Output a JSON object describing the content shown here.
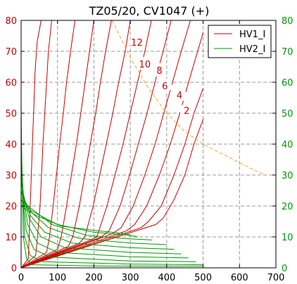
{
  "chart_data": {
    "type": "line",
    "title": "TZ05/20, CV1047 (+)",
    "xlabel": "",
    "ylabel": "",
    "xlim": [
      0,
      700
    ],
    "ylim": [
      0,
      80
    ],
    "xticks": [
      0,
      100,
      200,
      300,
      400,
      500,
      600,
      700
    ],
    "yticks": [
      0,
      10,
      20,
      30,
      40,
      50,
      60,
      70,
      80
    ],
    "grid": true,
    "legend_position": "top-right",
    "colors": {
      "HV1_I": "#cc0000",
      "HV2_I": "#009900",
      "limit": "#f0a830",
      "right_axis": "#009900",
      "curve_labels": "#cc0000"
    },
    "series": [
      {
        "name": "HV1_I",
        "color": "#cc0000",
        "curves": [
          [
            [
              0,
              0
            ],
            [
              20,
              3
            ],
            [
              22,
              10
            ],
            [
              25,
              20
            ],
            [
              28,
              30
            ],
            [
              31,
              40
            ],
            [
              35,
              52
            ],
            [
              38,
              63
            ],
            [
              44,
              73
            ],
            [
              55,
              80
            ]
          ],
          [
            [
              0,
              0
            ],
            [
              40,
              4
            ],
            [
              45,
              10
            ],
            [
              52,
              20
            ],
            [
              56,
              30
            ],
            [
              60,
              40
            ],
            [
              65,
              50
            ],
            [
              70,
              60
            ],
            [
              75,
              70
            ],
            [
              84,
              80
            ]
          ],
          [
            [
              0,
              0
            ],
            [
              70,
              5
            ],
            [
              78,
              10
            ],
            [
              88,
              20
            ],
            [
              97,
              30
            ],
            [
              106,
              40
            ],
            [
              116,
              50
            ],
            [
              125,
              60
            ],
            [
              136,
              70
            ],
            [
              148,
              80
            ]
          ],
          [
            [
              0,
              0
            ],
            [
              100,
              6
            ],
            [
              110,
              10
            ],
            [
              125,
              20
            ],
            [
              138,
              30
            ],
            [
              152,
              40
            ],
            [
              164,
              50
            ],
            [
              176,
              60
            ],
            [
              188,
              70
            ],
            [
              200,
              80
            ]
          ],
          [
            [
              0,
              0
            ],
            [
              130,
              7
            ],
            [
              142,
              10
            ],
            [
              160,
              20
            ],
            [
              175,
              30
            ],
            [
              190,
              40
            ],
            [
              205,
              50
            ],
            [
              218,
              60
            ],
            [
              232,
              70
            ],
            [
              248,
              80
            ]
          ],
          [
            [
              0,
              0
            ],
            [
              160,
              8
            ],
            [
              175,
              10
            ],
            [
              198,
              20
            ],
            [
              216,
              30
            ],
            [
              234,
              40
            ],
            [
              252,
              50
            ],
            [
              268,
              60
            ],
            [
              286,
              70
            ],
            [
              300,
              80
            ]
          ],
          [
            [
              0,
              0
            ],
            [
              190,
              9
            ],
            [
              208,
              10
            ],
            [
              236,
              20
            ],
            [
              258,
              30
            ],
            [
              280,
              40
            ],
            [
              300,
              50
            ],
            [
              320,
              60
            ],
            [
              340,
              70
            ],
            [
              358,
              80
            ]
          ],
          [
            [
              0,
              0
            ],
            [
              220,
              10
            ],
            [
              242,
              12
            ],
            [
              272,
              20
            ],
            [
              298,
              30
            ],
            [
              322,
              40
            ],
            [
              346,
              50
            ],
            [
              368,
              60
            ],
            [
              390,
              70
            ],
            [
              412,
              80
            ]
          ],
          [
            [
              0,
              0
            ],
            [
              250,
              11
            ],
            [
              275,
              13
            ],
            [
              308,
              20
            ],
            [
              340,
              30
            ],
            [
              368,
              40
            ],
            [
              392,
              50
            ],
            [
              416,
              60
            ],
            [
              440,
              70
            ],
            [
              465,
              80
            ]
          ],
          [
            [
              0,
              0
            ],
            [
              290,
              12
            ],
            [
              312,
              14
            ],
            [
              345,
              20
            ],
            [
              380,
              30
            ],
            [
              410,
              40
            ],
            [
              436,
              50
            ],
            [
              460,
              60
            ],
            [
              485,
              70
            ],
            [
              500,
              76
            ]
          ],
          [
            [
              0,
              0
            ],
            [
              330,
              13
            ],
            [
              350,
              15
            ],
            [
              385,
              20
            ],
            [
              420,
              30
            ],
            [
              450,
              40
            ],
            [
              475,
              50
            ],
            [
              500,
              58
            ]
          ],
          [
            [
              0,
              0
            ],
            [
              370,
              14
            ],
            [
              390,
              16
            ],
            [
              420,
              22
            ],
            [
              450,
              30
            ],
            [
              475,
              40
            ],
            [
              500,
              48
            ]
          ]
        ]
      },
      {
        "name": "HV2_I",
        "color": "#009900",
        "curves": [
          [
            [
              0,
              53
            ],
            [
              2,
              30
            ],
            [
              6,
              10
            ],
            [
              15,
              3
            ],
            [
              30,
              1
            ],
            [
              200,
              0.6
            ],
            [
              500,
              0.5
            ]
          ],
          [
            [
              0,
              46
            ],
            [
              3,
              28
            ],
            [
              10,
              10
            ],
            [
              25,
              4
            ],
            [
              60,
              2
            ],
            [
              300,
              1.2
            ],
            [
              500,
              1.0
            ]
          ],
          [
            [
              0,
              40
            ],
            [
              4,
              26
            ],
            [
              14,
              12
            ],
            [
              35,
              6
            ],
            [
              80,
              3.5
            ],
            [
              300,
              2.2
            ],
            [
              480,
              2.0
            ]
          ],
          [
            [
              0,
              37
            ],
            [
              5,
              25
            ],
            [
              18,
              14
            ],
            [
              45,
              8
            ],
            [
              100,
              5
            ],
            [
              300,
              3.6
            ],
            [
              460,
              3.2
            ]
          ],
          [
            [
              0,
              34
            ],
            [
              6,
              24
            ],
            [
              22,
              16
            ],
            [
              55,
              10
            ],
            [
              120,
              6.5
            ],
            [
              300,
              5.0
            ],
            [
              440,
              4.5
            ]
          ],
          [
            [
              0,
              31
            ],
            [
              7,
              23
            ],
            [
              25,
              17
            ],
            [
              65,
              11.5
            ],
            [
              140,
              8
            ],
            [
              300,
              6.5
            ],
            [
              420,
              6.0
            ]
          ],
          [
            [
              0,
              28
            ],
            [
              8,
              22
            ],
            [
              28,
              18
            ],
            [
              75,
              13
            ],
            [
              160,
              9.5
            ],
            [
              300,
              8.0
            ],
            [
              400,
              7.5
            ]
          ],
          [
            [
              0,
              25
            ],
            [
              9,
              21
            ],
            [
              30,
              19
            ],
            [
              85,
              14
            ],
            [
              180,
              10.5
            ],
            [
              280,
              9.5
            ],
            [
              360,
              9.0
            ]
          ],
          [
            [
              0,
              22
            ],
            [
              10,
              20
            ],
            [
              35,
              18
            ],
            [
              100,
              14
            ],
            [
              200,
              11.5
            ],
            [
              300,
              10.5
            ],
            [
              320,
              10.0
            ]
          ],
          [
            [
              0,
              20
            ],
            [
              12,
              19
            ],
            [
              40,
              17
            ],
            [
              110,
              13.5
            ],
            [
              210,
              12
            ],
            [
              290,
              11.0
            ],
            [
              300,
              10.5
            ]
          ]
        ]
      },
      {
        "name": "limit",
        "color": "#f0a830",
        "points": [
          [
            250,
            80
          ],
          [
            300,
            68
          ],
          [
            350,
            58
          ],
          [
            400,
            50
          ],
          [
            450,
            44
          ],
          [
            500,
            40
          ],
          [
            550,
            37
          ],
          [
            600,
            34
          ],
          [
            650,
            31
          ],
          [
            675,
            30
          ]
        ]
      }
    ],
    "curve_labels": [
      {
        "text": "12",
        "x": 318,
        "y": 72
      },
      {
        "text": "10",
        "x": 340,
        "y": 65
      },
      {
        "text": "8",
        "x": 380,
        "y": 63
      },
      {
        "text": "6",
        "x": 395,
        "y": 58
      },
      {
        "text": "4",
        "x": 435,
        "y": 55
      },
      {
        "text": "2",
        "x": 455,
        "y": 50
      }
    ],
    "legend": [
      "HV1_I",
      "HV2_I"
    ]
  }
}
